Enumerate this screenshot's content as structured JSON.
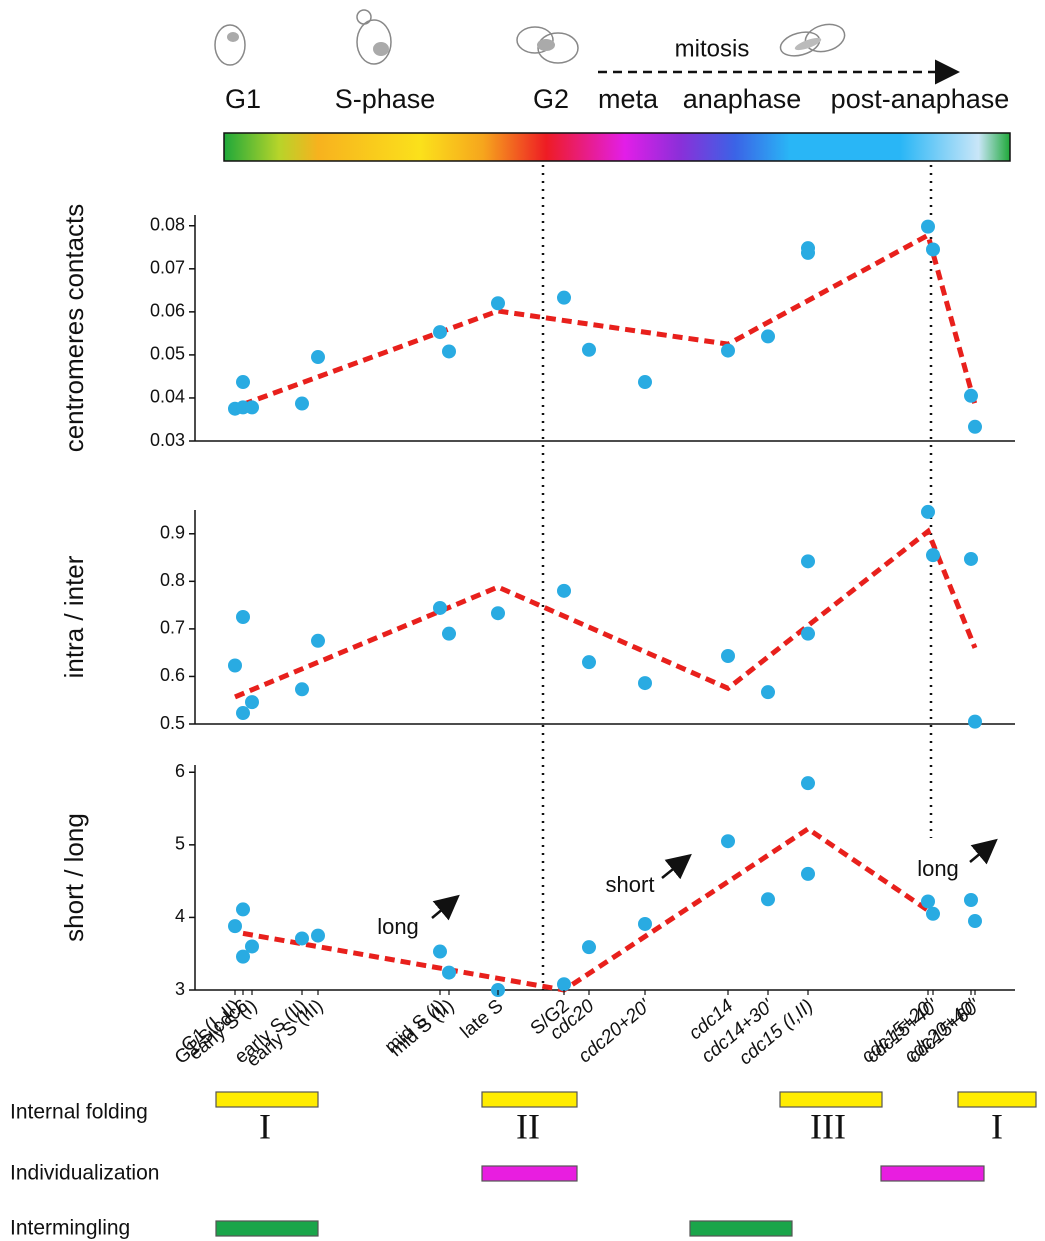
{
  "header": {
    "mitosis": "mitosis",
    "phases": [
      "G1",
      "S-phase",
      "G2",
      "meta",
      "anaphase",
      "post-anaphase"
    ]
  },
  "chart_data": [
    {
      "type": "scatter",
      "y_label": "centromeres contacts",
      "ylim": [
        0.03,
        0.0825
      ],
      "yticks": [
        0.03,
        0.04,
        0.05,
        0.06,
        0.07,
        0.08
      ],
      "series": [
        {
          "color": "#29abe2",
          "values": [
            0.0375,
            0.0378,
            0.0378,
            0.0387,
            0.0495,
            0.0553,
            0.0508,
            0.062,
            0.0633,
            0.0512,
            0.0437,
            0.051,
            0.0543,
            0.0748,
            0.0798,
            0.0745,
            0.0405,
            0.0333
          ]
        },
        {
          "color": "#29abe2",
          "values": [
            null,
            0.0437,
            null,
            null,
            null,
            null,
            null,
            null,
            null,
            null,
            null,
            null,
            null,
            0.0737,
            null,
            null,
            null,
            null
          ]
        }
      ],
      "trend": {
        "color": "#e8201c",
        "x": [
          "G1/S cdc6",
          "late S",
          "cdc14",
          "cdc15+20'",
          "cdc15+60'"
        ],
        "values": [
          0.0385,
          0.0602,
          0.0525,
          0.0778,
          0.0385
        ]
      }
    },
    {
      "type": "scatter",
      "y_label": "intra / inter",
      "ylim": [
        0.5,
        0.95
      ],
      "yticks": [
        0.5,
        0.6,
        0.7,
        0.8,
        0.9
      ],
      "series": [
        {
          "color": "#29abe2",
          "values": [
            0.623,
            0.725,
            0.546,
            0.573,
            0.675,
            0.744,
            0.69,
            0.733,
            0.78,
            0.63,
            0.586,
            0.643,
            0.567,
            0.842,
            0.946,
            0.855,
            0.847,
            0.505
          ]
        },
        {
          "color": "#29abe2",
          "values": [
            null,
            0.523,
            null,
            null,
            null,
            null,
            null,
            null,
            null,
            null,
            null,
            null,
            null,
            0.69,
            null,
            null,
            null,
            null
          ]
        }
      ],
      "trend": {
        "color": "#e8201c",
        "x": [
          "G1 (I, II)",
          "late S",
          "cdc14",
          "cdc15+20'",
          "cdc15+60'"
        ],
        "values": [
          0.557,
          0.788,
          0.575,
          0.905,
          0.66
        ]
      }
    },
    {
      "type": "scatter",
      "y_label": "short / long",
      "ylim": [
        3,
        6.1
      ],
      "yticks": [
        3,
        4,
        5,
        6
      ],
      "categories": [
        "G1 (I, II)",
        "G1/S cdc6",
        "early S (I)",
        "early S (II)",
        "early S (III)",
        "mid S (I)",
        "mid S (II)",
        "late S",
        "S/G2",
        "cdc20",
        "cdc20+20'",
        "cdc14",
        "cdc14+30'",
        "cdc15 (I,II)",
        "cdc15+20'",
        "cdc15+40'",
        "cdc20+40'",
        "cdc15+60'"
      ],
      "series": [
        {
          "color": "#29abe2",
          "values": [
            3.88,
            4.11,
            3.6,
            3.71,
            3.75,
            3.53,
            3.24,
            3.0,
            3.08,
            3.59,
            3.91,
            5.05,
            4.25,
            5.85,
            4.22,
            4.05,
            4.24,
            3.95
          ]
        },
        {
          "color": "#29abe2",
          "values": [
            null,
            3.46,
            null,
            null,
            null,
            null,
            null,
            null,
            null,
            null,
            null,
            null,
            null,
            4.6,
            null,
            null,
            null,
            null
          ]
        }
      ],
      "trend": {
        "color": "#e8201c",
        "x": [
          "G1/S cdc6",
          "S/G2",
          "cdc15 (I,II)",
          "cdc15+40'"
        ],
        "values": [
          3.78,
          3.0,
          5.22,
          4.05
        ]
      },
      "annotations": [
        "long",
        "short",
        "long"
      ]
    }
  ],
  "stages": {
    "rows": [
      {
        "label": "Internal folding",
        "phases": [
          "I",
          "II",
          "III",
          "I"
        ]
      },
      {
        "label": "Individualization"
      },
      {
        "label": "Intermingling"
      }
    ]
  }
}
